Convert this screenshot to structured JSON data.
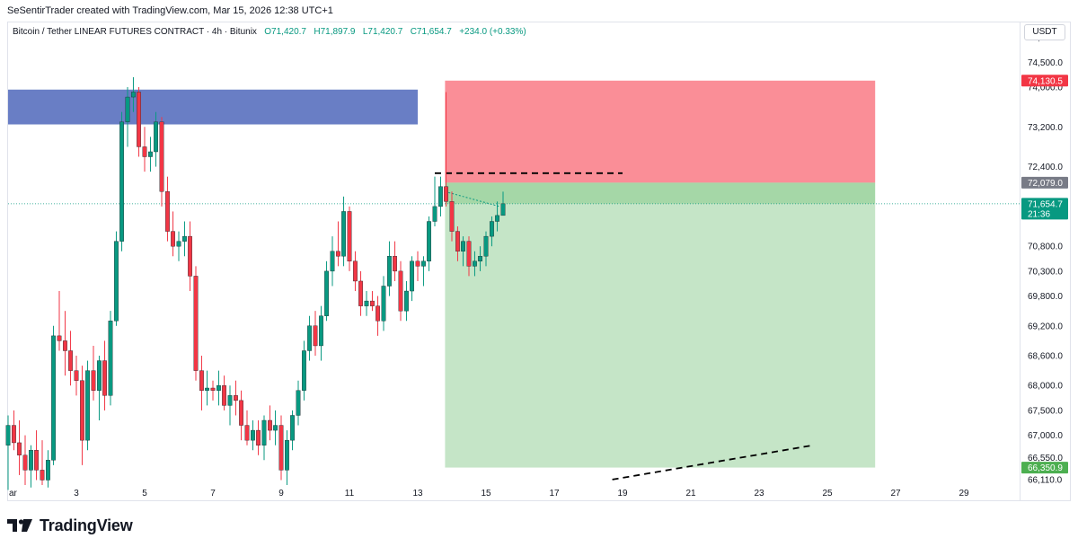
{
  "header": {
    "attribution": "SeSentirTrader created with TradingView.com, Mar 15, 2026 12:38 UTC+1"
  },
  "legend": {
    "symbol": "Bitcoin / Tether LINEAR FUTURES CONTRACT · 4h · Bitunix",
    "open": "O71,420.7",
    "high": "H71,897.9",
    "low": "L71,420.7",
    "close": "C71,654.7",
    "change": "+234.0 (+0.33%)"
  },
  "price_scale": {
    "currency": "USDT",
    "ticks": [
      "75,000.0",
      "74,500.0",
      "74,000.0",
      "73,200.0",
      "72,400.0",
      "70,800.0",
      "70,300.0",
      "69,800.0",
      "69,200.0",
      "68,600.0",
      "68,000.0",
      "67,500.0",
      "67,000.0",
      "66,550.0",
      "66,110.0"
    ],
    "badges": [
      {
        "label": "74,130.5",
        "color": "#f23645"
      },
      {
        "label": "72,079.0",
        "color": "#787b86"
      },
      {
        "label": "71,654.7",
        "sub": "21:36",
        "color": "#089981"
      },
      {
        "label": "66,350.9",
        "color": "#4caf50"
      }
    ]
  },
  "time_axis": {
    "labels": [
      "ar",
      "3",
      "5",
      "7",
      "9",
      "11",
      "13",
      "15",
      "17",
      "19",
      "21",
      "23",
      "25",
      "27",
      "29"
    ]
  },
  "colors": {
    "up": "#089981",
    "down": "#f23645",
    "supply_zone": "#3f5ab5",
    "stop_zone": "#f7525f",
    "target_zone": "#4caf50"
  },
  "chart_data": {
    "type": "candlestick",
    "symbol": "BTCUSDT.P",
    "timeframe": "4h",
    "ylim": [
      66000,
      75300
    ],
    "xlim": [
      1,
      30.5
    ],
    "candles": [
      {
        "t": 1.0,
        "o": 66800,
        "h": 67400,
        "l": 65900,
        "c": 67200
      },
      {
        "t": 1.17,
        "o": 67200,
        "h": 67500,
        "l": 66700,
        "c": 66850
      },
      {
        "t": 1.33,
        "o": 66850,
        "h": 67300,
        "l": 66200,
        "c": 66600
      },
      {
        "t": 1.5,
        "o": 66600,
        "h": 67000,
        "l": 66000,
        "c": 66300
      },
      {
        "t": 1.67,
        "o": 66300,
        "h": 66800,
        "l": 65950,
        "c": 66700
      },
      {
        "t": 1.83,
        "o": 66700,
        "h": 67100,
        "l": 66100,
        "c": 66300
      },
      {
        "t": 2.0,
        "o": 66300,
        "h": 66900,
        "l": 66000,
        "c": 66100
      },
      {
        "t": 2.17,
        "o": 66100,
        "h": 66700,
        "l": 65950,
        "c": 66500
      },
      {
        "t": 2.33,
        "o": 66500,
        "h": 69200,
        "l": 66400,
        "c": 69000
      },
      {
        "t": 2.5,
        "o": 69000,
        "h": 69900,
        "l": 68700,
        "c": 68900
      },
      {
        "t": 2.67,
        "o": 68900,
        "h": 69500,
        "l": 68200,
        "c": 68700
      },
      {
        "t": 2.83,
        "o": 68700,
        "h": 69100,
        "l": 68000,
        "c": 68300
      },
      {
        "t": 3.0,
        "o": 68300,
        "h": 68600,
        "l": 67800,
        "c": 68100
      },
      {
        "t": 3.17,
        "o": 68100,
        "h": 68400,
        "l": 66400,
        "c": 66900
      },
      {
        "t": 3.33,
        "o": 66900,
        "h": 68500,
        "l": 66700,
        "c": 68300
      },
      {
        "t": 3.5,
        "o": 68300,
        "h": 68800,
        "l": 67700,
        "c": 67900
      },
      {
        "t": 3.67,
        "o": 67900,
        "h": 68600,
        "l": 67300,
        "c": 68500
      },
      {
        "t": 3.83,
        "o": 68500,
        "h": 68900,
        "l": 67500,
        "c": 67800
      },
      {
        "t": 4.0,
        "o": 67800,
        "h": 69500,
        "l": 67600,
        "c": 69300
      },
      {
        "t": 4.17,
        "o": 69300,
        "h": 71100,
        "l": 69200,
        "c": 70900
      },
      {
        "t": 4.33,
        "o": 70900,
        "h": 73500,
        "l": 70700,
        "c": 73300
      },
      {
        "t": 4.5,
        "o": 73300,
        "h": 74000,
        "l": 72800,
        "c": 73800
      },
      {
        "t": 4.67,
        "o": 73800,
        "h": 74200,
        "l": 73500,
        "c": 73900
      },
      {
        "t": 4.83,
        "o": 73900,
        "h": 74000,
        "l": 72600,
        "c": 72800
      },
      {
        "t": 5.0,
        "o": 72800,
        "h": 73200,
        "l": 72300,
        "c": 72600
      },
      {
        "t": 5.17,
        "o": 72600,
        "h": 73000,
        "l": 72300,
        "c": 72700
      },
      {
        "t": 5.33,
        "o": 72700,
        "h": 73500,
        "l": 72400,
        "c": 73300
      },
      {
        "t": 5.5,
        "o": 73300,
        "h": 73400,
        "l": 71600,
        "c": 71900
      },
      {
        "t": 5.67,
        "o": 71900,
        "h": 72200,
        "l": 70900,
        "c": 71100
      },
      {
        "t": 5.83,
        "o": 71100,
        "h": 71500,
        "l": 70600,
        "c": 70800
      },
      {
        "t": 6.0,
        "o": 70800,
        "h": 71100,
        "l": 70500,
        "c": 70900
      },
      {
        "t": 6.17,
        "o": 70900,
        "h": 71300,
        "l": 70600,
        "c": 71000
      },
      {
        "t": 6.33,
        "o": 71000,
        "h": 71300,
        "l": 69900,
        "c": 70200
      },
      {
        "t": 6.5,
        "o": 70200,
        "h": 70400,
        "l": 68100,
        "c": 68300
      },
      {
        "t": 6.67,
        "o": 68300,
        "h": 68600,
        "l": 67500,
        "c": 67900
      },
      {
        "t": 6.83,
        "o": 67900,
        "h": 68300,
        "l": 67600,
        "c": 67950
      },
      {
        "t": 7.0,
        "o": 67950,
        "h": 68100,
        "l": 67700,
        "c": 67900
      },
      {
        "t": 7.17,
        "o": 67900,
        "h": 68300,
        "l": 67600,
        "c": 68000
      },
      {
        "t": 7.33,
        "o": 68000,
        "h": 68200,
        "l": 67500,
        "c": 67600
      },
      {
        "t": 7.5,
        "o": 67600,
        "h": 68000,
        "l": 67200,
        "c": 67800
      },
      {
        "t": 7.67,
        "o": 67800,
        "h": 68100,
        "l": 67400,
        "c": 67700
      },
      {
        "t": 7.83,
        "o": 67700,
        "h": 67900,
        "l": 66900,
        "c": 67200
      },
      {
        "t": 8.0,
        "o": 67200,
        "h": 67500,
        "l": 66800,
        "c": 66900
      },
      {
        "t": 8.17,
        "o": 66900,
        "h": 67300,
        "l": 66700,
        "c": 67100
      },
      {
        "t": 8.33,
        "o": 67100,
        "h": 67300,
        "l": 66600,
        "c": 66800
      },
      {
        "t": 8.5,
        "o": 66800,
        "h": 67400,
        "l": 66500,
        "c": 67300
      },
      {
        "t": 8.67,
        "o": 67300,
        "h": 67600,
        "l": 66900,
        "c": 67100
      },
      {
        "t": 8.83,
        "o": 67100,
        "h": 67500,
        "l": 66800,
        "c": 67200
      },
      {
        "t": 9.0,
        "o": 67200,
        "h": 67400,
        "l": 66100,
        "c": 66300
      },
      {
        "t": 9.17,
        "o": 66300,
        "h": 67100,
        "l": 66000,
        "c": 66900
      },
      {
        "t": 9.33,
        "o": 66900,
        "h": 67500,
        "l": 66700,
        "c": 67400
      },
      {
        "t": 9.5,
        "o": 67400,
        "h": 68100,
        "l": 67200,
        "c": 67900
      },
      {
        "t": 9.67,
        "o": 67900,
        "h": 68900,
        "l": 67700,
        "c": 68700
      },
      {
        "t": 9.83,
        "o": 68700,
        "h": 69400,
        "l": 68500,
        "c": 69200
      },
      {
        "t": 10.0,
        "o": 69200,
        "h": 69500,
        "l": 68600,
        "c": 68800
      },
      {
        "t": 10.17,
        "o": 68800,
        "h": 69600,
        "l": 68500,
        "c": 69400
      },
      {
        "t": 10.33,
        "o": 69400,
        "h": 70500,
        "l": 69300,
        "c": 70300
      },
      {
        "t": 10.5,
        "o": 70300,
        "h": 71000,
        "l": 70000,
        "c": 70700
      },
      {
        "t": 10.67,
        "o": 70700,
        "h": 71300,
        "l": 70400,
        "c": 70600
      },
      {
        "t": 10.83,
        "o": 70600,
        "h": 71800,
        "l": 70400,
        "c": 71500
      },
      {
        "t": 11.0,
        "o": 71500,
        "h": 71600,
        "l": 70300,
        "c": 70500
      },
      {
        "t": 11.17,
        "o": 70500,
        "h": 70700,
        "l": 69900,
        "c": 70100
      },
      {
        "t": 11.33,
        "o": 70100,
        "h": 70300,
        "l": 69400,
        "c": 69600
      },
      {
        "t": 11.5,
        "o": 69600,
        "h": 69900,
        "l": 69400,
        "c": 69700
      },
      {
        "t": 11.67,
        "o": 69700,
        "h": 69900,
        "l": 69500,
        "c": 69600
      },
      {
        "t": 11.83,
        "o": 69600,
        "h": 69800,
        "l": 69000,
        "c": 69300
      },
      {
        "t": 12.0,
        "o": 69300,
        "h": 70200,
        "l": 69100,
        "c": 70000
      },
      {
        "t": 12.17,
        "o": 70000,
        "h": 70900,
        "l": 69800,
        "c": 70600
      },
      {
        "t": 12.33,
        "o": 70600,
        "h": 70900,
        "l": 70100,
        "c": 70300
      },
      {
        "t": 12.5,
        "o": 70300,
        "h": 70500,
        "l": 69300,
        "c": 69500
      },
      {
        "t": 12.67,
        "o": 69500,
        "h": 70100,
        "l": 69300,
        "c": 69900
      },
      {
        "t": 12.83,
        "o": 69900,
        "h": 70600,
        "l": 69700,
        "c": 70500
      },
      {
        "t": 13.0,
        "o": 70500,
        "h": 70700,
        "l": 70100,
        "c": 70400
      },
      {
        "t": 13.17,
        "o": 70400,
        "h": 70600,
        "l": 70000,
        "c": 70500
      },
      {
        "t": 13.33,
        "o": 70500,
        "h": 71400,
        "l": 70300,
        "c": 71300
      },
      {
        "t": 13.5,
        "o": 71300,
        "h": 72200,
        "l": 71200,
        "c": 71600
      },
      {
        "t": 13.67,
        "o": 71600,
        "h": 72200,
        "l": 71400,
        "c": 72000
      },
      {
        "t": 13.83,
        "o": 72000,
        "h": 73900,
        "l": 71600,
        "c": 71700
      },
      {
        "t": 14.0,
        "o": 71700,
        "h": 71900,
        "l": 70900,
        "c": 71100
      },
      {
        "t": 14.17,
        "o": 71100,
        "h": 71200,
        "l": 70500,
        "c": 70700
      },
      {
        "t": 14.33,
        "o": 70700,
        "h": 71000,
        "l": 70400,
        "c": 70900
      },
      {
        "t": 14.5,
        "o": 70900,
        "h": 71000,
        "l": 70200,
        "c": 70400
      },
      {
        "t": 14.67,
        "o": 70400,
        "h": 70700,
        "l": 70200,
        "c": 70500
      },
      {
        "t": 14.83,
        "o": 70500,
        "h": 70800,
        "l": 70300,
        "c": 70600
      },
      {
        "t": 15.0,
        "o": 70600,
        "h": 71100,
        "l": 70400,
        "c": 71000
      },
      {
        "t": 15.17,
        "o": 71000,
        "h": 71400,
        "l": 70800,
        "c": 71300
      },
      {
        "t": 15.33,
        "o": 71300,
        "h": 71700,
        "l": 71100,
        "c": 71420
      },
      {
        "t": 15.5,
        "o": 71420,
        "h": 71898,
        "l": 71420,
        "c": 71655
      }
    ],
    "zones": [
      {
        "kind": "supply",
        "t0": 1,
        "t1": 13.0,
        "top": 73950,
        "bottom": 73250
      },
      {
        "kind": "stop",
        "t0": 13.8,
        "t1": 26.4,
        "top": 74130.5,
        "bottom": 72079.0
      },
      {
        "kind": "entry-band",
        "t0": 13.8,
        "t1": 26.4,
        "top": 72079.0,
        "bottom": 71654.7
      },
      {
        "kind": "target",
        "t0": 13.8,
        "t1": 26.4,
        "top": 71654.7,
        "bottom": 66350.9
      }
    ],
    "lines": [
      {
        "style": "dashed",
        "t0": 13.5,
        "p0": 72270,
        "t1": 19.0,
        "p1": 72270
      },
      {
        "style": "dashed",
        "t0": 18.7,
        "p0": 66110,
        "t1": 24.5,
        "p1": 66790
      },
      {
        "style": "dotted",
        "t0": 13.8,
        "p0": 71900,
        "t1": 15.4,
        "p1": 71600
      }
    ],
    "last_price": 71654.7
  }
}
